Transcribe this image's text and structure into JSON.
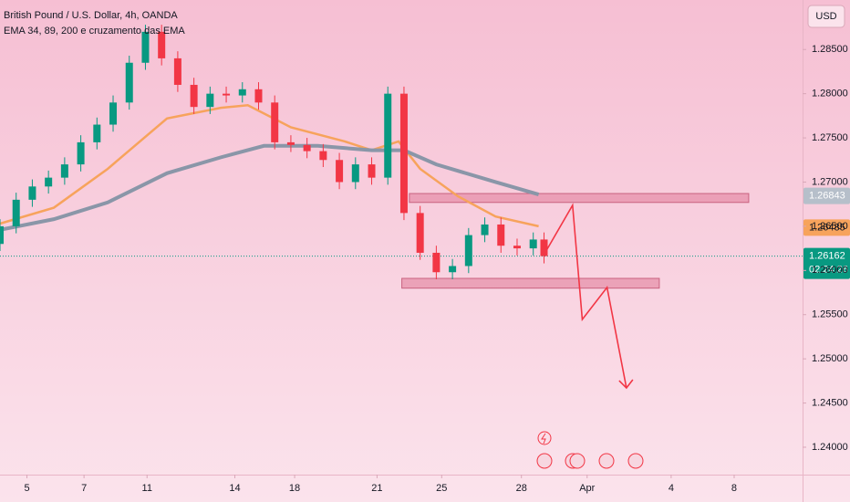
{
  "chart_data": {
    "type": "candlestick",
    "title": "British Pound / U.S. Dollar, 4h, OANDA",
    "subtitle": "EMA 34, 89, 200 e cruzamento das EMA",
    "currency": "USD",
    "xlim": [
      0,
      149
    ],
    "ylim": [
      1.2369,
      1.2906
    ],
    "xticks": [
      {
        "value": 5,
        "label": "5"
      },
      {
        "value": 15.6,
        "label": "7"
      },
      {
        "value": 27.3,
        "label": "11"
      },
      {
        "value": 43.6,
        "label": "14"
      },
      {
        "value": 54.7,
        "label": "18"
      },
      {
        "value": 70,
        "label": "21"
      },
      {
        "value": 82,
        "label": "25"
      },
      {
        "value": 96.8,
        "label": "28"
      },
      {
        "value": 109,
        "label": "Apr"
      },
      {
        "value": 124.6,
        "label": "4"
      },
      {
        "value": 136.3,
        "label": "8"
      }
    ],
    "yticks": [
      {
        "value": 1.24,
        "label": "1.24000"
      },
      {
        "value": 1.245,
        "label": "1.24500"
      },
      {
        "value": 1.25,
        "label": "1.25000"
      },
      {
        "value": 1.255,
        "label": "1.25500"
      },
      {
        "value": 1.26,
        "label": "1.26000"
      },
      {
        "value": 1.265,
        "label": "1.26500"
      },
      {
        "value": 1.27,
        "label": "1.27000"
      },
      {
        "value": 1.275,
        "label": "1.27500"
      },
      {
        "value": 1.28,
        "label": "1.28000"
      },
      {
        "value": 1.285,
        "label": "1.28500"
      }
    ],
    "up_color": "#089981",
    "down_color": "#f23645",
    "x": [
      0,
      3,
      6,
      9,
      12,
      15,
      18,
      21,
      24,
      27,
      30,
      33,
      36,
      39,
      42,
      45,
      48,
      51,
      54,
      57,
      60,
      63,
      66,
      69,
      72,
      75,
      78,
      81,
      84,
      87,
      90,
      93,
      96,
      99,
      101
    ],
    "open": [
      1.263,
      1.265,
      1.268,
      1.2695,
      1.2705,
      1.272,
      1.2745,
      1.2765,
      1.279,
      1.2835,
      1.287,
      1.284,
      1.281,
      1.2785,
      1.28,
      1.2798,
      1.2805,
      1.279,
      1.2745,
      1.2742,
      1.2735,
      1.2725,
      1.27,
      1.272,
      1.2705,
      1.28,
      1.2665,
      1.262,
      1.2598,
      1.2605,
      1.264,
      1.2652,
      1.2628,
      1.2625,
      1.2635
    ],
    "high": [
      1.2658,
      1.2688,
      1.2703,
      1.2713,
      1.2728,
      1.2753,
      1.2773,
      1.2798,
      1.2843,
      1.2878,
      1.2878,
      1.2848,
      1.2818,
      1.2808,
      1.2808,
      1.2813,
      1.2813,
      1.2798,
      1.2753,
      1.275,
      1.2743,
      1.2733,
      1.2728,
      1.2728,
      1.2808,
      1.2808,
      1.2673,
      1.2628,
      1.2613,
      1.2648,
      1.266,
      1.266,
      1.2636,
      1.2643,
      1.2643
    ],
    "low": [
      1.2622,
      1.2642,
      1.2672,
      1.2687,
      1.2697,
      1.2712,
      1.2737,
      1.2757,
      1.2782,
      1.2827,
      1.2832,
      1.2802,
      1.2777,
      1.2777,
      1.279,
      1.279,
      1.2782,
      1.2737,
      1.2734,
      1.2727,
      1.2717,
      1.2692,
      1.2692,
      1.2697,
      1.2697,
      1.2657,
      1.2612,
      1.259,
      1.259,
      1.2597,
      1.2632,
      1.262,
      1.2617,
      1.2617,
      1.2608
    ],
    "close": [
      1.265,
      1.268,
      1.2695,
      1.2705,
      1.272,
      1.2745,
      1.2765,
      1.279,
      1.2835,
      1.287,
      1.284,
      1.281,
      1.2785,
      1.28,
      1.2798,
      1.2805,
      1.279,
      1.2745,
      1.2742,
      1.2735,
      1.2725,
      1.27,
      1.272,
      1.2705,
      1.28,
      1.2665,
      1.262,
      1.2598,
      1.2605,
      1.264,
      1.2652,
      1.2628,
      1.2625,
      1.2635,
      1.26162
    ],
    "series": [
      {
        "color": "#f7a35c",
        "x": [
          0,
          10,
          20,
          31,
          41,
          46,
          54,
          64,
          69,
          74,
          78,
          85,
          92,
          100
        ],
        "values": [
          1.2653,
          1.2671,
          1.2715,
          1.2772,
          1.2784,
          1.2787,
          1.2762,
          1.2746,
          1.2736,
          1.2746,
          1.2715,
          1.2684,
          1.2661,
          1.265
        ]
      },
      {
        "color": "#8a96a8",
        "x": [
          0,
          10,
          20,
          31,
          41,
          49,
          59,
          69,
          75,
          81,
          92,
          100
        ],
        "values": [
          1.2646,
          1.2658,
          1.2677,
          1.271,
          1.2728,
          1.2741,
          1.2741,
          1.2736,
          1.2736,
          1.272,
          1.27,
          1.2686
        ]
      }
    ],
    "zones": [
      {
        "x": [
          76,
          139
        ],
        "low": 1.2678,
        "high": 1.2686
      },
      {
        "x": [
          74.6,
          122.4
        ],
        "low": 1.2581,
        "high": 1.259
      }
    ],
    "projection": {
      "color": "#f23645",
      "x": [
        101,
        106.3,
        108.1,
        112.7,
        116.3
      ],
      "values": [
        1.2618,
        1.26738,
        1.25446,
        1.25808,
        1.24671
      ]
    },
    "price_labels": [
      {
        "value": 1.26843,
        "color": "#b6bfca"
      },
      {
        "value": 1.26485,
        "color": "#f7a35c"
      },
      {
        "value": 1.26162,
        "color": "#089981"
      }
    ],
    "countdown": "02:24:26"
  }
}
